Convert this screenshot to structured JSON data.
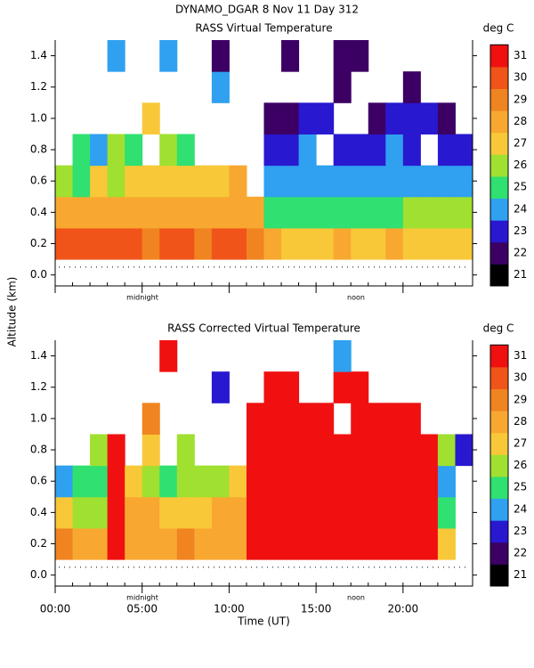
{
  "header": {
    "title": "DYNAMO_DGAR    8 Nov 11 Day 312"
  },
  "y_label": "Altitude (km)",
  "chart_data": [
    {
      "type": "contour",
      "title": "RASS Virtual Temperature",
      "unit": "deg C",
      "annotations": [
        "midnight",
        "noon"
      ],
      "xlim": [
        0,
        24
      ],
      "ylim": [
        -0.07,
        1.5
      ],
      "yticks": [
        {
          "value": 0,
          "label": "0.0"
        },
        0.2,
        0.4,
        0.6,
        0.8,
        {
          "value": 1,
          "label": "1.0"
        },
        1.2,
        1.4
      ],
      "levels": [
        21,
        22,
        23,
        24,
        25,
        26,
        27,
        28,
        29,
        30,
        31
      ],
      "colors": [
        "#000000",
        "#3c0064",
        "#2818d0",
        "#30a0f0",
        "#30e070",
        "#a0e030",
        "#f8c838",
        "#f8a830",
        "#f08420",
        "#f05418",
        "#f01010"
      ],
      "z": [
        [
          30,
          30,
          30,
          30,
          30,
          29,
          30,
          30,
          29,
          30,
          30,
          29,
          28,
          27,
          27,
          27,
          28,
          27,
          27,
          28,
          27,
          27,
          27,
          27
        ],
        [
          28,
          28,
          28,
          28,
          28,
          28,
          28,
          28,
          28,
          28,
          28,
          28,
          25,
          25,
          25,
          25,
          25,
          25,
          25,
          25,
          26,
          26,
          26,
          26
        ],
        [
          26,
          25,
          27,
          26,
          27,
          27,
          27,
          27,
          27,
          27,
          28,
          null,
          24,
          24,
          24,
          24,
          24,
          24,
          24,
          24,
          24,
          24,
          24,
          24
        ],
        [
          null,
          25,
          24,
          26,
          25,
          null,
          26,
          25,
          null,
          null,
          null,
          null,
          23,
          23,
          24,
          null,
          23,
          23,
          23,
          24,
          23,
          null,
          23,
          23
        ],
        [
          null,
          null,
          null,
          null,
          null,
          27,
          null,
          null,
          null,
          null,
          null,
          null,
          22,
          22,
          23,
          23,
          null,
          null,
          22,
          23,
          23,
          23,
          22,
          null
        ],
        [
          null,
          null,
          null,
          null,
          null,
          null,
          null,
          null,
          null,
          24,
          null,
          null,
          null,
          null,
          null,
          null,
          22,
          null,
          null,
          null,
          22,
          null,
          null,
          null
        ],
        [
          null,
          null,
          null,
          24,
          null,
          null,
          24,
          null,
          null,
          22,
          null,
          null,
          null,
          22,
          null,
          null,
          22,
          22,
          null,
          null,
          null,
          null,
          null,
          null
        ]
      ]
    },
    {
      "type": "contour",
      "title": "RASS Corrected Virtual Temperature",
      "unit": "deg C",
      "annotations": [
        "midnight",
        "noon"
      ],
      "x_label": "Time (UT)",
      "xlim": [
        0,
        24
      ],
      "ylim": [
        -0.07,
        1.5
      ],
      "xticks": [
        {
          "value": 0,
          "label": "00:00"
        },
        {
          "value": 5,
          "label": "05:00"
        },
        {
          "value": 10,
          "label": "10:00"
        },
        {
          "value": 15,
          "label": "15:00"
        },
        {
          "value": 20,
          "label": "20:00"
        }
      ],
      "yticks": [
        {
          "value": 0,
          "label": "0.0"
        },
        0.2,
        0.4,
        0.6,
        0.8,
        {
          "value": 1,
          "label": "1.0"
        },
        1.2,
        1.4
      ],
      "levels": [
        21,
        22,
        23,
        24,
        25,
        26,
        27,
        28,
        29,
        30,
        31
      ],
      "colors": [
        "#000000",
        "#3c0064",
        "#2818d0",
        "#30a0f0",
        "#30e070",
        "#a0e030",
        "#f8c838",
        "#f8a830",
        "#f08420",
        "#f05418",
        "#f01010"
      ],
      "z": [
        [
          29,
          28,
          28,
          31,
          28,
          28,
          28,
          29,
          28,
          28,
          28,
          31,
          31,
          31,
          31,
          31,
          31,
          31,
          31,
          31,
          31,
          31,
          27,
          null
        ],
        [
          27,
          26,
          26,
          31,
          28,
          28,
          27,
          27,
          27,
          28,
          28,
          31,
          31,
          31,
          31,
          31,
          31,
          31,
          31,
          31,
          31,
          31,
          25,
          null
        ],
        [
          24,
          25,
          25,
          31,
          27,
          26,
          25,
          26,
          26,
          26,
          27,
          31,
          31,
          31,
          31,
          31,
          31,
          31,
          31,
          31,
          31,
          31,
          24,
          null
        ],
        [
          null,
          null,
          26,
          31,
          null,
          27,
          null,
          26,
          null,
          null,
          null,
          31,
          31,
          31,
          31,
          31,
          31,
          31,
          31,
          31,
          31,
          31,
          26,
          23
        ],
        [
          null,
          null,
          null,
          null,
          null,
          29,
          null,
          null,
          null,
          null,
          null,
          31,
          31,
          31,
          31,
          31,
          null,
          31,
          31,
          31,
          31,
          null,
          null,
          null
        ],
        [
          null,
          null,
          null,
          null,
          null,
          null,
          null,
          null,
          null,
          23,
          null,
          null,
          31,
          31,
          null,
          null,
          31,
          31,
          null,
          null,
          null,
          null,
          null,
          null
        ],
        [
          null,
          null,
          null,
          null,
          null,
          null,
          31,
          null,
          null,
          null,
          null,
          null,
          null,
          null,
          null,
          null,
          24,
          null,
          null,
          null,
          null,
          null,
          null,
          null
        ]
      ]
    }
  ]
}
